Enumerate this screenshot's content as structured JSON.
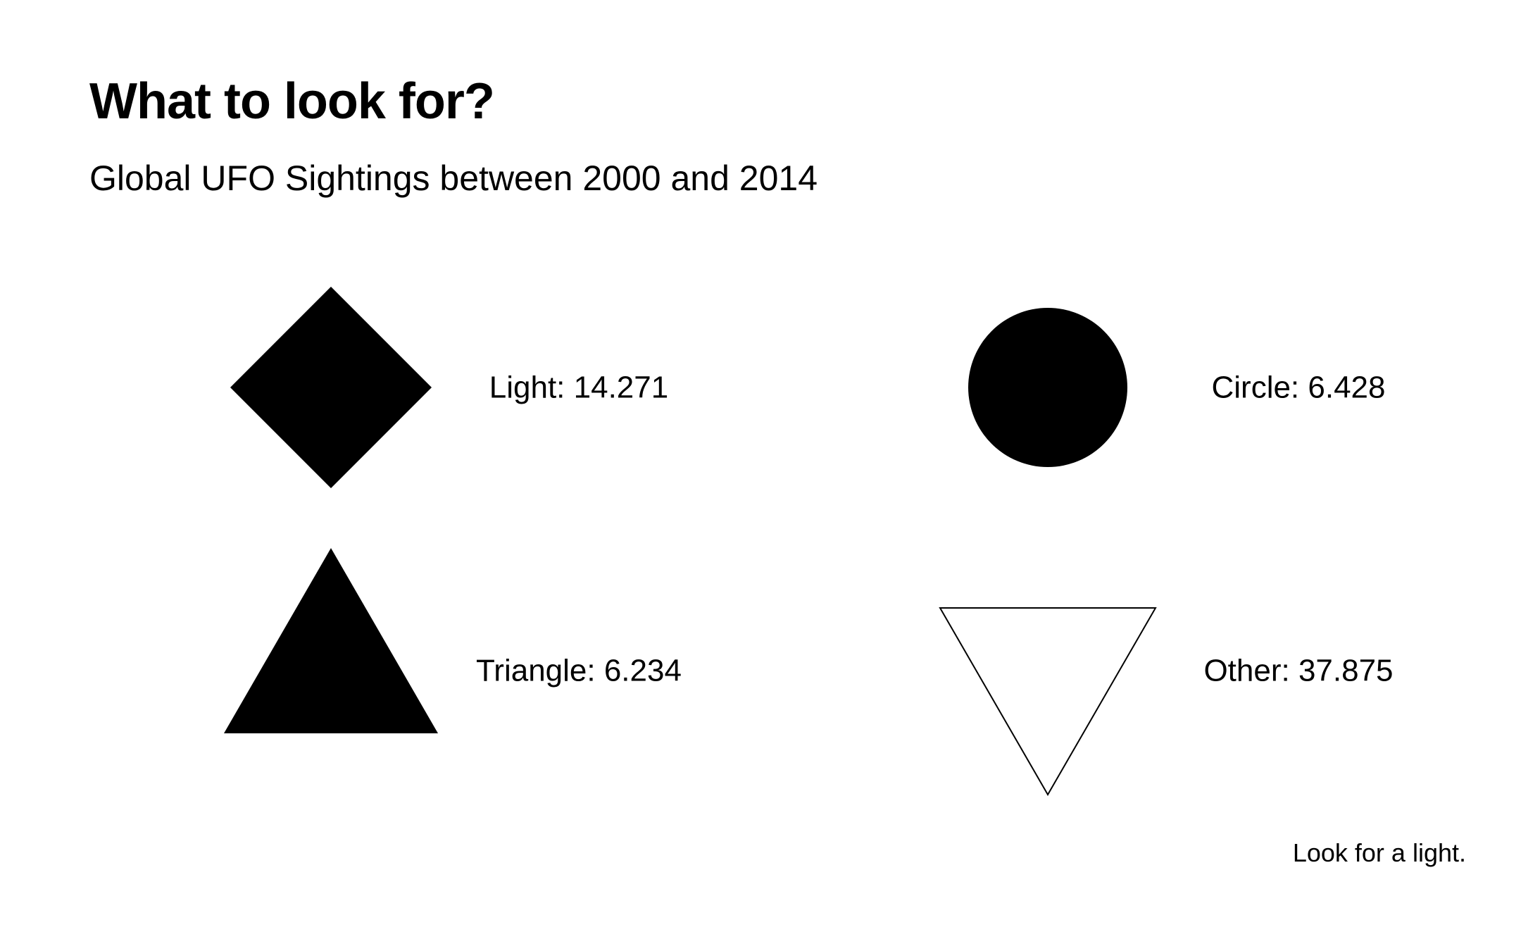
{
  "title": "What to look for?",
  "subtitle": "Global UFO Sightings between 2000 and 2014",
  "caption": "Look for a light.",
  "colors": {
    "filled": "#000000",
    "outline": "#000000",
    "background": "#ffffff"
  },
  "chart_data": {
    "type": "table",
    "title": "What to look for?",
    "subtitle": "Global UFO Sightings between 2000 and 2014",
    "caption": "Look for a light.",
    "layout": "2x2 grid",
    "items": [
      {
        "shape": "Light",
        "value": "14.271",
        "symbol": "diamond-filled"
      },
      {
        "shape": "Circle",
        "value": "6.428",
        "symbol": "circle-filled"
      },
      {
        "shape": "Triangle",
        "value": "6.234",
        "symbol": "triangle-up-filled"
      },
      {
        "shape": "Other",
        "value": "37.875",
        "symbol": "triangle-down-outline"
      }
    ]
  }
}
